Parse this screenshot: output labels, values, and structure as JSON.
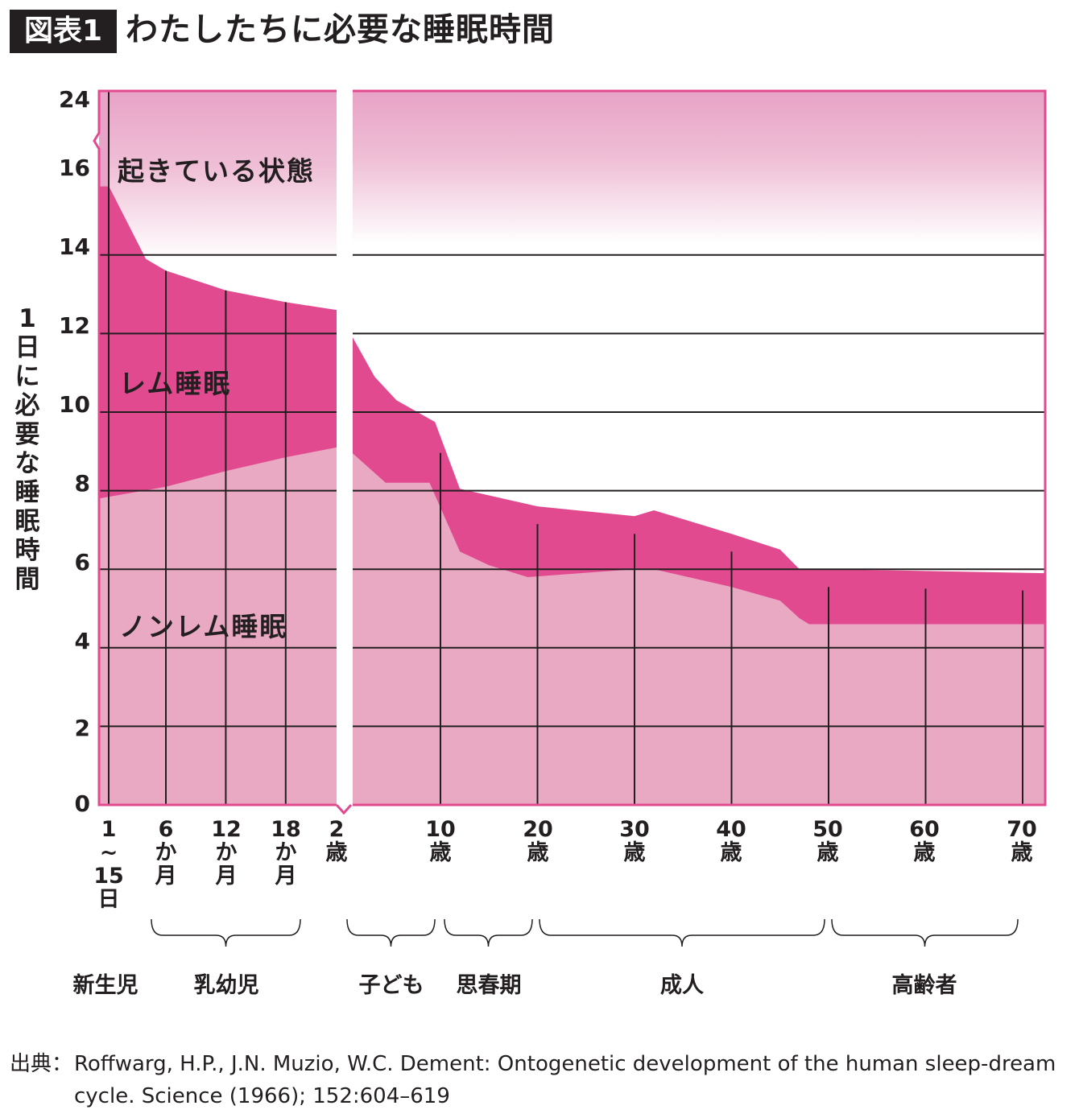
{
  "header": {
    "badge": "図表1",
    "title": "わたしたちに必要な睡眠時間"
  },
  "source": {
    "lead": "出典：",
    "text": "Roffwarg, H.P., J.N. Muzio, W.C. Dement: Ontogenetic development of the human sleep-dream cycle. Science (1966); 152:604–619"
  },
  "colors": {
    "awake": "#e8a3c6",
    "rem": "#e24a90",
    "nrem": "#e9a9c3",
    "frame": "#e24a90"
  },
  "chart_data": {
    "type": "area",
    "title": "わたしたちに必要な睡眠時間",
    "ylabel": "1日に必要な睡眠時間",
    "ylim": [
      0,
      24
    ],
    "y_ticks": [
      "0",
      "2",
      "4",
      "6",
      "8",
      "10",
      "12",
      "14",
      "16",
      "24"
    ],
    "y_axis_break": "14–24 compressed",
    "area_labels": {
      "awake": "起きている状態",
      "rem": "レム睡眠",
      "nrem": "ノンレム睡眠"
    },
    "x_ticks": [
      {
        "lines": [
          "1",
          "~",
          "15",
          "日"
        ]
      },
      {
        "lines": [
          "6",
          "か",
          "月"
        ]
      },
      {
        "lines": [
          "12",
          "か",
          "月"
        ]
      },
      {
        "lines": [
          "18",
          "か",
          "月"
        ]
      },
      {
        "lines": [
          "2",
          "歳"
        ]
      },
      {
        "lines": [
          "10",
          "歳"
        ]
      },
      {
        "lines": [
          "20",
          "歳"
        ]
      },
      {
        "lines": [
          "30",
          "歳"
        ]
      },
      {
        "lines": [
          "40",
          "歳"
        ]
      },
      {
        "lines": [
          "50",
          "歳"
        ]
      },
      {
        "lines": [
          "60",
          "歳"
        ]
      },
      {
        "lines": [
          "70",
          "歳"
        ]
      }
    ],
    "groups": [
      "新生児",
      "乳幼児",
      "子ども",
      "思春期",
      "成人",
      "高齢者"
    ],
    "infant_segment_months": {
      "total_sleep": [
        [
          -0.7,
          15.6
        ],
        [
          0.3,
          15.6
        ],
        [
          4,
          13.9
        ],
        [
          6,
          13.6
        ],
        [
          12,
          13.1
        ],
        [
          18,
          12.8
        ],
        [
          23.1,
          12.6
        ]
      ],
      "nrem_sleep": [
        [
          -0.7,
          7.8
        ],
        [
          6,
          8.1
        ],
        [
          12,
          8.5
        ],
        [
          18,
          8.85
        ],
        [
          23.1,
          9.1
        ]
      ]
    },
    "age_segment_years": {
      "total_sleep": [
        [
          2,
          11.9
        ],
        [
          4,
          10.9
        ],
        [
          6,
          10.3
        ],
        [
          9.5,
          9.75
        ],
        [
          12,
          8.05
        ],
        [
          20,
          7.6
        ],
        [
          30,
          7.35
        ],
        [
          32,
          7.5
        ],
        [
          40,
          6.9
        ],
        [
          45,
          6.5
        ],
        [
          47,
          6.0
        ],
        [
          50,
          6.0
        ],
        [
          72.3,
          5.9
        ]
      ],
      "nrem_sleep": [
        [
          2,
          8.95
        ],
        [
          5,
          8.2
        ],
        [
          9,
          8.2
        ],
        [
          12,
          6.45
        ],
        [
          15,
          6.1
        ],
        [
          19,
          5.8
        ],
        [
          30,
          6.0
        ],
        [
          32,
          6.0
        ],
        [
          40,
          5.55
        ],
        [
          45,
          5.2
        ],
        [
          47,
          4.75
        ],
        [
          48,
          4.6
        ],
        [
          72.3,
          4.6
        ]
      ]
    }
  }
}
